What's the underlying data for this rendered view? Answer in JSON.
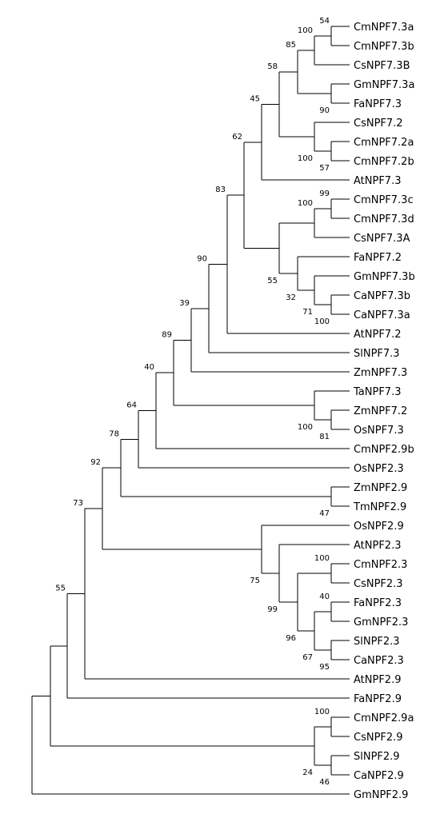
{
  "taxa": [
    "CmNPF7.3a",
    "CmNPF7.3b",
    "CsNPF7.3B",
    "GmNPF7.3a",
    "FaNPF7.3",
    "CsNPF7.2",
    "CmNPF7.2a",
    "CmNPF7.2b",
    "AtNPF7.3",
    "CmNPF7.3c",
    "CmNPF7.3d",
    "CsNPF7.3A",
    "FaNPF7.2",
    "GmNPF7.3b",
    "CaNPF7.3b",
    "CaNPF7.3a",
    "AtNPF7.2",
    "SlNPF7.3",
    "ZmNPF7.3",
    "TaNPF7.3",
    "ZmNPF7.2",
    "OsNPF7.3",
    "CmNPF2.9b",
    "OsNPF2.3",
    "ZmNPF2.9",
    "TmNPF2.9",
    "OsNPF2.9",
    "AtNPF2.3",
    "CmNPF2.3",
    "CsNPF2.3",
    "FaNPF2.3",
    "GmNPF2.3",
    "SlNPF2.3",
    "CaNPF2.3",
    "AtNPF2.9",
    "FaNPF2.9",
    "CmNPF2.9a",
    "CsNPF2.9",
    "SlNPF2.9",
    "CaNPF2.9",
    "GmNPF2.9"
  ],
  "support_values": [
    "54",
    "100",
    "85",
    "90",
    "58",
    "100",
    "57",
    "45",
    "99",
    "100",
    "55",
    "32",
    "71",
    "100",
    "62",
    "83",
    "90",
    "39",
    "89",
    "100",
    "81",
    "40",
    "64",
    "78",
    "47",
    "92",
    "100",
    "75",
    "99",
    "96",
    "40",
    "67",
    "95",
    "73",
    "55",
    "100",
    "24",
    "46"
  ],
  "tree": {
    "type": "rectangular phylogenetic tree",
    "label_color": "#000000",
    "line_color": "#000000"
  }
}
